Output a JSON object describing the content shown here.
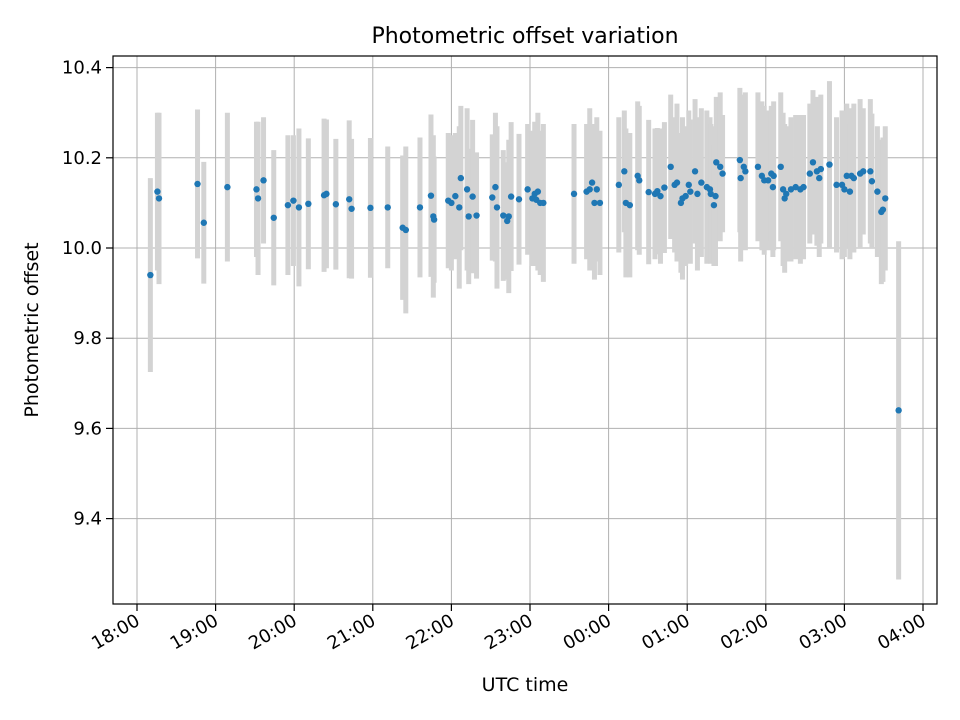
{
  "chart_data": {
    "type": "scatter",
    "title": "Photometric offset variation",
    "xlabel": "UTC time",
    "ylabel": "Photometric offset",
    "x_unit": "hours after 18:00 UTC",
    "x_ticks": [
      {
        "t": 0,
        "label": "18:00"
      },
      {
        "t": 1,
        "label": "19:00"
      },
      {
        "t": 2,
        "label": "20:00"
      },
      {
        "t": 3,
        "label": "21:00"
      },
      {
        "t": 4,
        "label": "22:00"
      },
      {
        "t": 5,
        "label": "23:00"
      },
      {
        "t": 6,
        "label": "00:00"
      },
      {
        "t": 7,
        "label": "01:00"
      },
      {
        "t": 8,
        "label": "02:00"
      },
      {
        "t": 9,
        "label": "03:00"
      },
      {
        "t": 10,
        "label": "04:00"
      }
    ],
    "y_ticks": [
      {
        "v": 9.4,
        "label": "9.4"
      },
      {
        "v": 9.6,
        "label": "9.6"
      },
      {
        "v": 9.8,
        "label": "9.8"
      },
      {
        "v": 10.0,
        "label": "10.0"
      },
      {
        "v": 10.2,
        "label": "10.2"
      },
      {
        "v": 10.4,
        "label": "10.4"
      }
    ],
    "xlim": [
      -0.3,
      10.2
    ],
    "ylim": [
      9.21,
      10.425
    ],
    "grid": true,
    "colors": {
      "point": "#1f77b4",
      "errorbar": "#d3d3d3",
      "grid": "#b0b0b0"
    },
    "points": [
      [
        0.17,
        9.94,
        0.215
      ],
      [
        0.26,
        10.125,
        0.175
      ],
      [
        0.28,
        10.11,
        0.19
      ],
      [
        0.77,
        10.142,
        0.165
      ],
      [
        0.85,
        10.056,
        0.135
      ],
      [
        1.15,
        10.135,
        0.165
      ],
      [
        1.52,
        10.13,
        0.15
      ],
      [
        1.54,
        10.11,
        0.17
      ],
      [
        1.61,
        10.15,
        0.14
      ],
      [
        1.74,
        10.067,
        0.15
      ],
      [
        1.92,
        10.095,
        0.155
      ],
      [
        1.99,
        10.105,
        0.145
      ],
      [
        2.06,
        10.09,
        0.175
      ],
      [
        2.18,
        10.098,
        0.145
      ],
      [
        2.38,
        10.117,
        0.17
      ],
      [
        2.41,
        10.12,
        0.165
      ],
      [
        2.53,
        10.097,
        0.145
      ],
      [
        2.7,
        10.108,
        0.175
      ],
      [
        2.73,
        10.087,
        0.155
      ],
      [
        2.97,
        10.089,
        0.155
      ],
      [
        3.19,
        10.09,
        0.135
      ],
      [
        3.38,
        10.045,
        0.16
      ],
      [
        3.42,
        10.04,
        0.185
      ],
      [
        3.6,
        10.09,
        0.155
      ],
      [
        3.74,
        10.116,
        0.18
      ],
      [
        3.77,
        10.07,
        0.18
      ],
      [
        3.78,
        10.063,
        0.14
      ],
      [
        3.96,
        10.105,
        0.15
      ],
      [
        4.0,
        10.1,
        0.15
      ],
      [
        4.05,
        10.115,
        0.14
      ],
      [
        4.1,
        10.09,
        0.18
      ],
      [
        4.12,
        10.155,
        0.16
      ],
      [
        4.2,
        10.13,
        0.18
      ],
      [
        4.22,
        10.07,
        0.15
      ],
      [
        4.27,
        10.114,
        0.17
      ],
      [
        4.32,
        10.072,
        0.14
      ],
      [
        4.52,
        10.112,
        0.14
      ],
      [
        4.56,
        10.135,
        0.165
      ],
      [
        4.58,
        10.09,
        0.18
      ],
      [
        4.66,
        10.072,
        0.145
      ],
      [
        4.71,
        10.06,
        0.13
      ],
      [
        4.73,
        10.07,
        0.17
      ],
      [
        4.76,
        10.114,
        0.165
      ],
      [
        4.86,
        10.108,
        0.145
      ],
      [
        4.97,
        10.13,
        0.145
      ],
      [
        5.03,
        10.11,
        0.15
      ],
      [
        5.06,
        10.12,
        0.16
      ],
      [
        5.08,
        10.107,
        0.135
      ],
      [
        5.1,
        10.125,
        0.175
      ],
      [
        5.13,
        10.1,
        0.16
      ],
      [
        5.17,
        10.1,
        0.175
      ],
      [
        5.56,
        10.12,
        0.155
      ],
      [
        5.72,
        10.125,
        0.15
      ],
      [
        5.76,
        10.13,
        0.18
      ],
      [
        5.79,
        10.145,
        0.13
      ],
      [
        5.82,
        10.1,
        0.17
      ],
      [
        5.85,
        10.13,
        0.16
      ],
      [
        5.89,
        10.1,
        0.16
      ],
      [
        6.13,
        10.14,
        0.15
      ],
      [
        6.2,
        10.17,
        0.135
      ],
      [
        6.22,
        10.1,
        0.165
      ],
      [
        6.27,
        10.095,
        0.16
      ],
      [
        6.37,
        10.16,
        0.165
      ],
      [
        6.39,
        10.15,
        0.165
      ],
      [
        6.51,
        10.124,
        0.16
      ],
      [
        6.59,
        10.12,
        0.145
      ],
      [
        6.62,
        10.126,
        0.14
      ],
      [
        6.66,
        10.115,
        0.15
      ],
      [
        6.71,
        10.134,
        0.145
      ],
      [
        6.79,
        10.18,
        0.16
      ],
      [
        6.84,
        10.14,
        0.15
      ],
      [
        6.87,
        10.145,
        0.175
      ],
      [
        6.92,
        10.1,
        0.155
      ],
      [
        6.94,
        10.11,
        0.18
      ],
      [
        6.98,
        10.115,
        0.155
      ],
      [
        7.02,
        10.14,
        0.165
      ],
      [
        7.04,
        10.125,
        0.16
      ],
      [
        7.1,
        10.17,
        0.16
      ],
      [
        7.13,
        10.12,
        0.17
      ],
      [
        7.18,
        10.145,
        0.165
      ],
      [
        7.25,
        10.135,
        0.17
      ],
      [
        7.29,
        10.13,
        0.16
      ],
      [
        7.3,
        10.12,
        0.155
      ],
      [
        7.34,
        10.095,
        0.135
      ],
      [
        7.36,
        10.115,
        0.155
      ],
      [
        7.37,
        10.19,
        0.145
      ],
      [
        7.42,
        10.18,
        0.165
      ],
      [
        7.45,
        10.165,
        0.13
      ],
      [
        7.67,
        10.195,
        0.16
      ],
      [
        7.68,
        10.155,
        0.185
      ],
      [
        7.72,
        10.18,
        0.15
      ],
      [
        7.74,
        10.17,
        0.175
      ],
      [
        7.9,
        10.18,
        0.165
      ],
      [
        7.95,
        10.16,
        0.165
      ],
      [
        7.98,
        10.15,
        0.165
      ],
      [
        8.03,
        10.15,
        0.155
      ],
      [
        8.07,
        10.165,
        0.15
      ],
      [
        8.09,
        10.135,
        0.155
      ],
      [
        8.1,
        10.16,
        0.165
      ],
      [
        8.19,
        10.18,
        0.165
      ],
      [
        8.22,
        10.13,
        0.17
      ],
      [
        8.24,
        10.11,
        0.165
      ],
      [
        8.26,
        10.12,
        0.15
      ],
      [
        8.32,
        10.13,
        0.16
      ],
      [
        8.38,
        10.135,
        0.16
      ],
      [
        8.44,
        10.13,
        0.165
      ],
      [
        8.48,
        10.135,
        0.16
      ],
      [
        8.56,
        10.165,
        0.155
      ],
      [
        8.6,
        10.19,
        0.16
      ],
      [
        8.65,
        10.17,
        0.165
      ],
      [
        8.68,
        10.155,
        0.175
      ],
      [
        8.7,
        10.175,
        0.165
      ],
      [
        8.81,
        10.185,
        0.185
      ],
      [
        8.9,
        10.14,
        0.15
      ],
      [
        8.97,
        10.14,
        0.165
      ],
      [
        9.0,
        10.13,
        0.15
      ],
      [
        9.03,
        10.16,
        0.16
      ],
      [
        9.07,
        10.125,
        0.15
      ],
      [
        9.09,
        10.16,
        0.15
      ],
      [
        9.12,
        10.155,
        0.165
      ],
      [
        9.2,
        10.165,
        0.165
      ],
      [
        9.24,
        10.17,
        0.14
      ],
      [
        9.33,
        10.17,
        0.16
      ],
      [
        9.35,
        10.148,
        0.15
      ],
      [
        9.42,
        10.125,
        0.145
      ],
      [
        9.47,
        10.08,
        0.16
      ],
      [
        9.49,
        10.085,
        0.16
      ],
      [
        9.52,
        10.11,
        0.16
      ],
      [
        9.69,
        9.64,
        0.375
      ]
    ]
  }
}
